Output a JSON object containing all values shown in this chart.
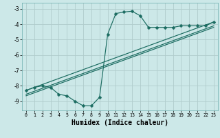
{
  "xlabel": "Humidex (Indice chaleur)",
  "background_color": "#cce8e8",
  "grid_color": "#b0cccc",
  "line_color": "#1a6b60",
  "xlim": [
    -0.5,
    23.5
  ],
  "ylim": [
    -9.6,
    -2.6
  ],
  "xticks": [
    0,
    1,
    2,
    3,
    4,
    5,
    6,
    7,
    8,
    9,
    10,
    11,
    12,
    13,
    14,
    15,
    16,
    17,
    18,
    19,
    20,
    21,
    22,
    23
  ],
  "yticks": [
    -9,
    -8,
    -7,
    -6,
    -5,
    -4,
    -3
  ],
  "curve1_x": [
    0,
    1,
    2,
    3,
    4,
    5,
    6,
    7,
    8,
    9,
    10,
    11,
    12,
    13,
    14,
    15,
    16,
    17,
    18,
    19,
    20,
    21,
    22,
    23
  ],
  "curve1_y": [
    -8.3,
    -8.1,
    -8.0,
    -8.1,
    -8.55,
    -8.65,
    -9.0,
    -9.3,
    -9.3,
    -8.75,
    -4.65,
    -3.3,
    -3.2,
    -3.15,
    -3.45,
    -4.2,
    -4.2,
    -4.2,
    -4.2,
    -4.1,
    -4.1,
    -4.1,
    -4.1,
    -3.85
  ],
  "line1_x": [
    0,
    23
  ],
  "line1_y": [
    -8.3,
    -3.85
  ],
  "line2_x": [
    0,
    23
  ],
  "line2_y": [
    -8.55,
    -4.1
  ],
  "line3_x": [
    0,
    23
  ],
  "line3_y": [
    -8.65,
    -4.2
  ],
  "marker_size": 2.5
}
